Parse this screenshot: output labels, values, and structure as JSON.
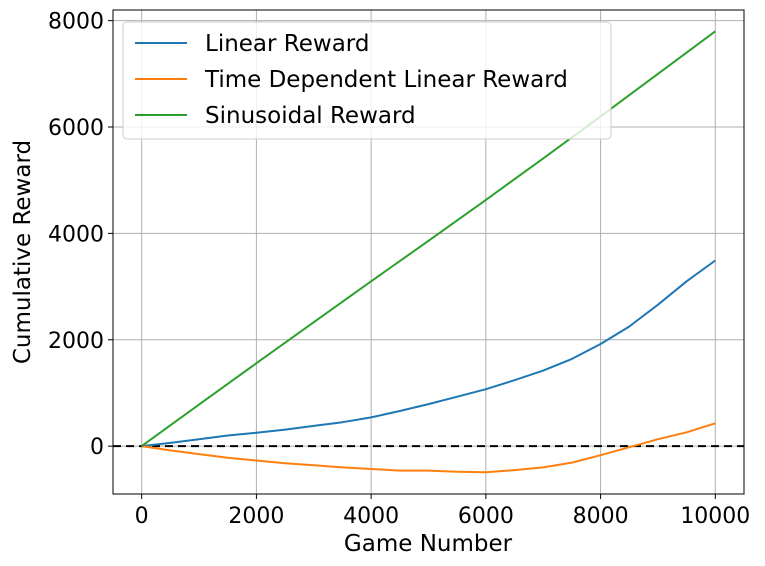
{
  "chart_data": {
    "type": "line",
    "title": "",
    "xlabel": "Game Number",
    "ylabel": "Cumulative Reward",
    "xlim": [
      -500,
      10500
    ],
    "ylim": [
      -900,
      8200
    ],
    "xticks": [
      0,
      2000,
      4000,
      6000,
      8000,
      10000
    ],
    "xtick_labels": [
      "0",
      "2000",
      "4000",
      "6000",
      "8000",
      "10000"
    ],
    "yticks": [
      0,
      2000,
      4000,
      6000,
      8000
    ],
    "ytick_labels": [
      "0",
      "2000",
      "4000",
      "6000",
      "8000"
    ],
    "grid": true,
    "legend_position": "top-left",
    "reference_line": {
      "y": 0,
      "style": "dashed",
      "color": "#000000"
    },
    "series": [
      {
        "name": "Linear Reward",
        "color": "#1f77b4",
        "x": [
          0,
          500,
          1000,
          1500,
          2000,
          2500,
          3000,
          3500,
          4000,
          4500,
          5000,
          5500,
          6000,
          6500,
          7000,
          7500,
          8000,
          8500,
          9000,
          9500,
          10000
        ],
        "y": [
          0,
          60,
          130,
          200,
          250,
          310,
          380,
          450,
          540,
          660,
          790,
          930,
          1070,
          1240,
          1420,
          1640,
          1920,
          2250,
          2660,
          3100,
          3490
        ]
      },
      {
        "name": "Time Dependent Linear Reward",
        "color": "#ff7f0e",
        "x": [
          0,
          500,
          1000,
          1500,
          2000,
          2500,
          3000,
          3500,
          4000,
          4500,
          5000,
          5500,
          6000,
          6500,
          7000,
          7500,
          8000,
          8500,
          9000,
          9500,
          10000
        ],
        "y": [
          0,
          -80,
          -150,
          -220,
          -270,
          -320,
          -360,
          -400,
          -430,
          -460,
          -460,
          -480,
          -490,
          -450,
          -400,
          -310,
          -170,
          -20,
          130,
          260,
          430
        ]
      },
      {
        "name": "Sinusoidal Reward",
        "color": "#2ca02c",
        "x": [
          0,
          1000,
          2000,
          3000,
          4000,
          5000,
          6000,
          7000,
          8000,
          9000,
          10000
        ],
        "y": [
          0,
          780,
          1560,
          2330,
          3100,
          3860,
          4630,
          5410,
          6200,
          7000,
          7800
        ]
      }
    ]
  }
}
